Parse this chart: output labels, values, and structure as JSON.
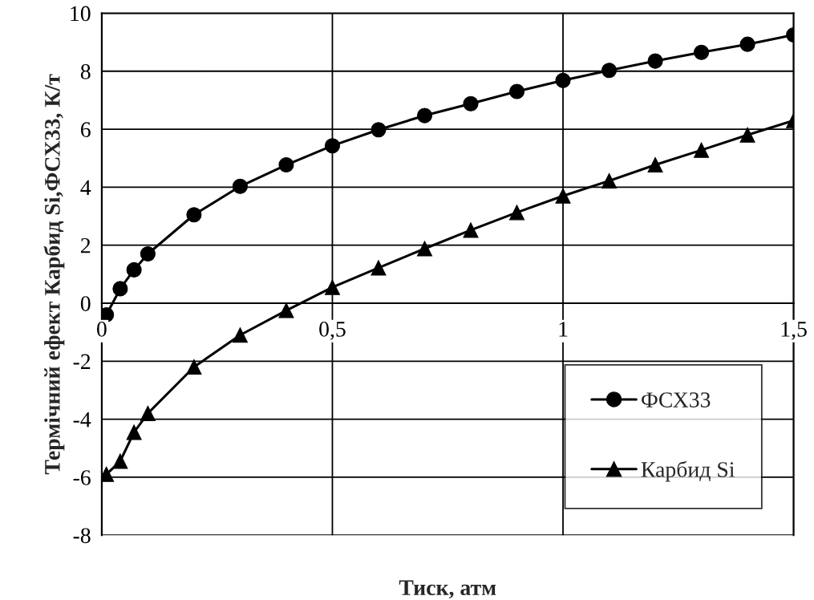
{
  "chart_data": {
    "type": "line",
    "xlabel": "Тиск, атм",
    "ylabel": "Термічний ефект Карбид Si,ФСХ33, К/т",
    "xlim": [
      0,
      1.5
    ],
    "xticks": [
      0,
      {
        "value": 0.5,
        "label": "0,5"
      },
      1,
      {
        "value": 1.5,
        "label": "1,5"
      }
    ],
    "ylim": [
      -8,
      10
    ],
    "yticks": [
      -8,
      -6,
      -4,
      -2,
      0,
      2,
      4,
      6,
      8,
      10
    ],
    "grid": true,
    "legend": "bottom right",
    "series": [
      {
        "name": "ФСХ33",
        "color": "#000000",
        "marker": "circle",
        "x": [
          0.01,
          0.04,
          0.07,
          0.1,
          0.2,
          0.3,
          0.4,
          0.5,
          0.6,
          0.7,
          0.8,
          0.9,
          1.0,
          1.1,
          1.2,
          1.3,
          1.4,
          1.5
        ],
        "values": [
          -0.4,
          0.5,
          1.15,
          1.7,
          3.05,
          4.03,
          4.77,
          5.43,
          5.98,
          6.47,
          6.88,
          7.3,
          7.68,
          8.03,
          8.35,
          8.65,
          8.93,
          9.25
        ]
      },
      {
        "name": "Карбид Si",
        "color": "#000000",
        "marker": "triangle",
        "x": [
          0.01,
          0.04,
          0.07,
          0.1,
          0.2,
          0.3,
          0.4,
          0.5,
          0.6,
          0.7,
          0.8,
          0.9,
          1.0,
          1.1,
          1.2,
          1.3,
          1.4,
          1.5
        ],
        "values": [
          -5.9,
          -5.45,
          -4.45,
          -3.8,
          -2.2,
          -1.1,
          -0.25,
          0.55,
          1.22,
          1.88,
          2.52,
          3.13,
          3.7,
          4.22,
          4.77,
          5.28,
          5.8,
          6.3
        ]
      }
    ]
  }
}
